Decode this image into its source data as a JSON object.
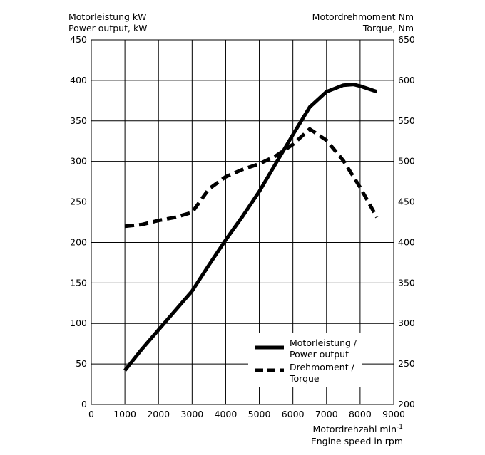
{
  "chart_data": {
    "type": "line",
    "x": [
      1000,
      1500,
      2000,
      2500,
      3000,
      3500,
      4000,
      4500,
      5000,
      5500,
      6000,
      6500,
      7000,
      7500,
      7800,
      8000,
      8500
    ],
    "xlim": [
      0,
      9000
    ],
    "xticks": [
      0,
      1000,
      2000,
      3000,
      4000,
      5000,
      6000,
      7000,
      8000,
      9000
    ],
    "ylim_left": [
      0,
      450
    ],
    "yticks_left": [
      0,
      50,
      100,
      150,
      200,
      250,
      300,
      350,
      400,
      450
    ],
    "ylim_right": [
      200,
      650
    ],
    "yticks_right": [
      200,
      250,
      300,
      350,
      400,
      450,
      500,
      550,
      600,
      650
    ],
    "grid": true,
    "ylabel_left": [
      "Motorleistung kW",
      "Power output, kW"
    ],
    "ylabel_right": [
      "Motordrehmoment Nm",
      "Torque, Nm"
    ],
    "xlabel": {
      "line1": "Motordrehzahl min",
      "line1_sup": "-1",
      "line2": "Engine speed in rpm"
    },
    "series": [
      {
        "name": "Motorleistung / Power output",
        "axis": "left",
        "style": "solid",
        "x": [
          1000,
          1500,
          2000,
          2500,
          3000,
          3500,
          4000,
          4500,
          5000,
          5500,
          6000,
          6500,
          7000,
          7500,
          7800,
          8000,
          8500
        ],
        "values": [
          42,
          68,
          92,
          116,
          140,
          172,
          203,
          232,
          263,
          298,
          333,
          367,
          386,
          394,
          395,
          393,
          386
        ]
      },
      {
        "name": "Drehmoment / Torque",
        "axis": "right",
        "style": "dashed",
        "x": [
          1000,
          1500,
          2000,
          2500,
          3000,
          3500,
          4000,
          4500,
          5000,
          5500,
          6000,
          6500,
          7000,
          7500,
          8000,
          8500
        ],
        "values": [
          420,
          422,
          427,
          431,
          437,
          466,
          481,
          490,
          497,
          507,
          521,
          540,
          526,
          501,
          468,
          431
        ]
      }
    ],
    "legend": [
      {
        "line1": "Motorleistung /",
        "line2": "Power output",
        "style": "solid"
      },
      {
        "line1": "Drehmoment /",
        "line2": "Torque",
        "style": "dashed"
      }
    ]
  }
}
